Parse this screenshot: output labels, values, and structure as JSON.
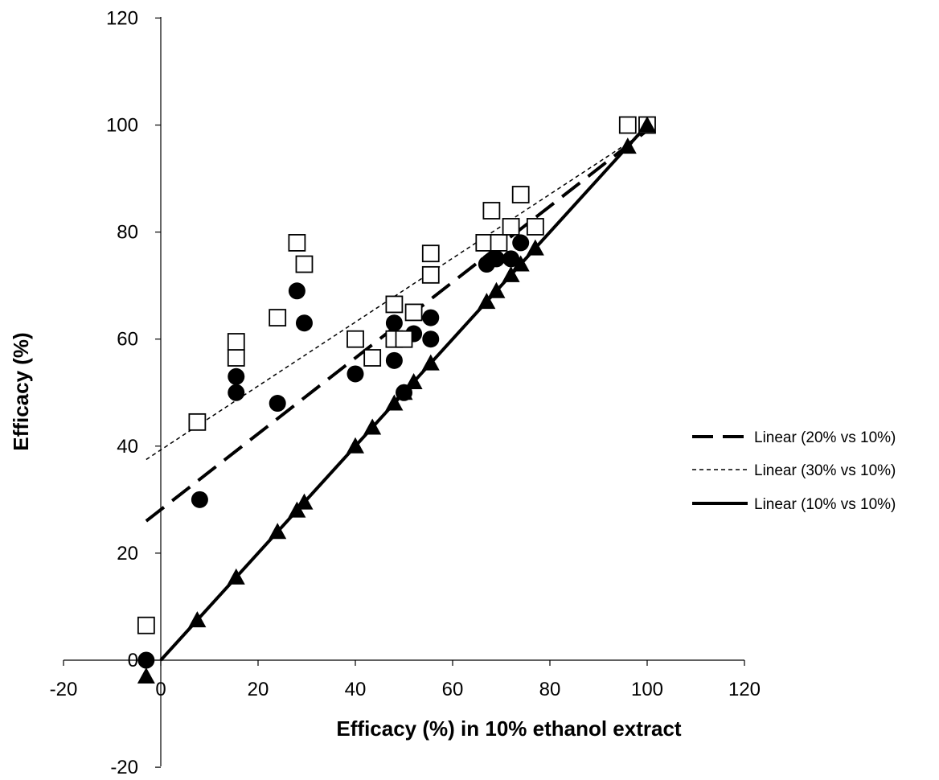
{
  "chart_data": {
    "type": "scatter",
    "title": "",
    "xlabel": "Efficacy (%) in 10%   ethanol extract",
    "ylabel": "Efficacy (%)",
    "xlim": [
      -20,
      120
    ],
    "ylim": [
      -20,
      120
    ],
    "x_ticks": [
      "-20",
      "0",
      "20",
      "40",
      "60",
      "80",
      "100",
      "120"
    ],
    "y_ticks": [
      "-20",
      "0",
      "20",
      "40",
      "60",
      "80",
      "100",
      "120"
    ],
    "grid": false,
    "legend_position": "right",
    "series": [
      {
        "marker": "circle-filled",
        "x": [
          -3,
          8,
          15.5,
          15.5,
          24,
          28,
          29.5,
          40,
          48,
          48,
          50,
          52,
          55.5,
          55.5,
          67,
          69,
          72,
          74,
          96,
          100
        ],
        "y": [
          0,
          30,
          50,
          53,
          48,
          69,
          63,
          53.5,
          56,
          63,
          50,
          61,
          60,
          64,
          74,
          75,
          75,
          78,
          100,
          100
        ]
      },
      {
        "marker": "square-open",
        "x": [
          -3,
          7.5,
          15.5,
          15.5,
          24,
          28,
          29.5,
          40,
          43.5,
          48,
          48,
          50,
          52,
          55.5,
          55.5,
          66.5,
          68,
          69.5,
          72,
          74,
          77,
          96,
          100
        ],
        "y": [
          6.5,
          44.5,
          56.5,
          59.5,
          64,
          78,
          74,
          60,
          56.5,
          60,
          66.5,
          60,
          65,
          72,
          76,
          78,
          84,
          78,
          81,
          87,
          81,
          100,
          100
        ]
      },
      {
        "marker": "triangle-filled",
        "x": [
          -3,
          7.5,
          15.5,
          24,
          28,
          29.5,
          40,
          43.5,
          48,
          50,
          52,
          55.5,
          67,
          69,
          72,
          74,
          77,
          96,
          100
        ],
        "y": [
          -3,
          7.5,
          15.5,
          24,
          28,
          29.5,
          40,
          43.5,
          48,
          50,
          52,
          55.5,
          67,
          69,
          72,
          74,
          77,
          96,
          100
        ]
      }
    ],
    "trendlines": [
      {
        "name": "Linear (20% vs 10%)",
        "style": "long-dash",
        "stroke_width": 4,
        "x": [
          -3,
          100
        ],
        "y": [
          26,
          99
        ]
      },
      {
        "name": "Linear (30% vs 10%)",
        "style": "short-dash",
        "stroke_width": 1.5,
        "x": [
          -3,
          100
        ],
        "y": [
          37.5,
          99
        ]
      },
      {
        "name": "Linear (10% vs 10%)",
        "style": "solid",
        "stroke_width": 4,
        "x": [
          0,
          100
        ],
        "y": [
          0,
          100
        ]
      }
    ],
    "colors": {
      "ink": "#000000",
      "background": "#ffffff"
    }
  }
}
